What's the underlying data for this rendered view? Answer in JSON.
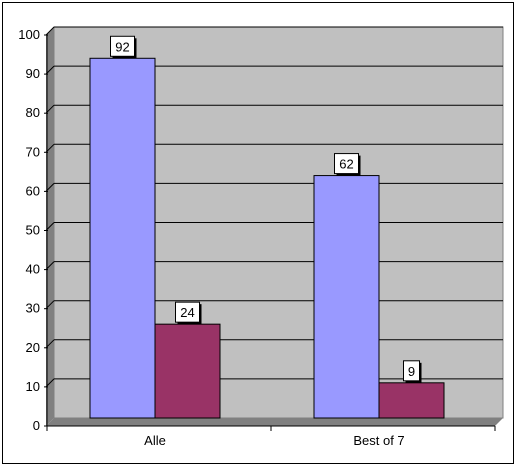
{
  "chart_data": {
    "type": "bar",
    "categories": [
      "Alle",
      "Best of 7"
    ],
    "series": [
      {
        "values": [
          92,
          62
        ],
        "color": "#9999ff"
      },
      {
        "values": [
          24,
          9
        ],
        "color": "#993366"
      }
    ],
    "ylim": [
      0,
      100
    ],
    "yticks": [
      0,
      10,
      20,
      30,
      40,
      50,
      60,
      70,
      80,
      90,
      100
    ],
    "grid": true,
    "plot_background": "#c0c0c0",
    "data_labels": true,
    "legend": "none"
  }
}
